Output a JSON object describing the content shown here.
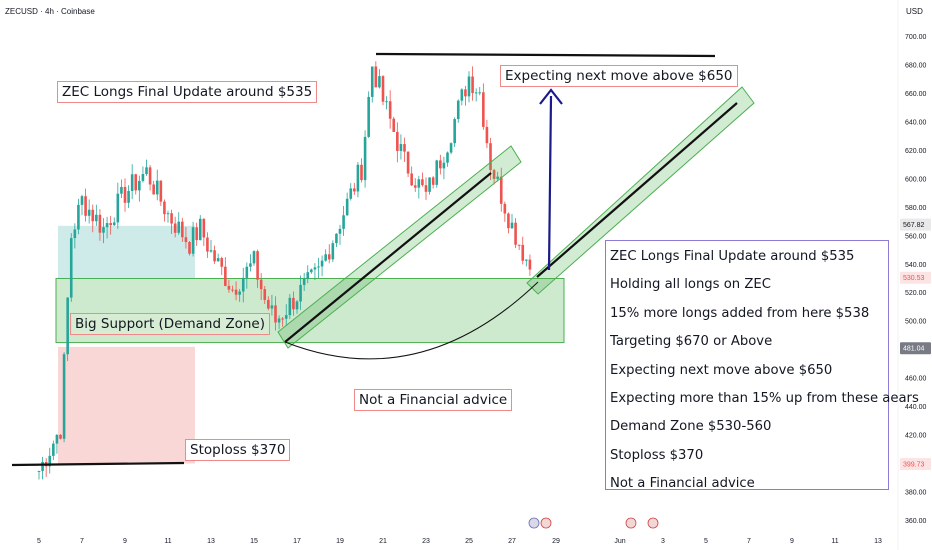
{
  "header": {
    "symbol_label": "ZECUSD · 4h · Coinbase",
    "currency": "USD"
  },
  "chart_data": {
    "type": "candlestick",
    "title": "ZECUSD · 4h · Coinbase",
    "y_axis": {
      "label": "USD",
      "range": [
        350,
        710
      ],
      "ticks": [
        "360.00",
        "380.00",
        "400.00",
        "420.00",
        "440.00",
        "460.00",
        "480.00",
        "500.00",
        "520.00",
        "540.00",
        "560.00",
        "580.00",
        "600.00",
        "620.00",
        "640.00",
        "660.00",
        "680.00",
        "700.00"
      ]
    },
    "x_axis": {
      "ticks": [
        "5",
        "7",
        "9",
        "11",
        "13",
        "15",
        "17",
        "19",
        "21",
        "23",
        "25",
        "27",
        "29",
        "Jun",
        "3",
        "5",
        "7",
        "9",
        "11",
        "13"
      ]
    },
    "close_series": [
      {
        "x": "5",
        "y": 395
      },
      {
        "x": "6",
        "y": 425
      },
      {
        "x": "6.5",
        "y": 560
      },
      {
        "x": "7",
        "y": 585
      },
      {
        "x": "8",
        "y": 565
      },
      {
        "x": "9",
        "y": 590
      },
      {
        "x": "10",
        "y": 605
      },
      {
        "x": "11",
        "y": 575
      },
      {
        "x": "12",
        "y": 555
      },
      {
        "x": "12.5",
        "y": 565
      },
      {
        "x": "13",
        "y": 548
      },
      {
        "x": "14",
        "y": 523
      },
      {
        "x": "15",
        "y": 541
      },
      {
        "x": "15.5",
        "y": 515
      },
      {
        "x": "16",
        "y": 500
      },
      {
        "x": "17",
        "y": 518
      },
      {
        "x": "18",
        "y": 534
      },
      {
        "x": "19",
        "y": 570
      },
      {
        "x": "20",
        "y": 608
      },
      {
        "x": "20.5",
        "y": 680
      },
      {
        "x": "21",
        "y": 655
      },
      {
        "x": "22",
        "y": 612
      },
      {
        "x": "23",
        "y": 588
      },
      {
        "x": "24",
        "y": 626
      },
      {
        "x": "25",
        "y": 672
      },
      {
        "x": "25.5",
        "y": 661
      },
      {
        "x": "26",
        "y": 611
      },
      {
        "x": "27",
        "y": 567
      },
      {
        "x": "28",
        "y": 532
      }
    ],
    "price_labels": [
      {
        "value": "567.82",
        "y": 567.82,
        "color": "#131722",
        "bg": "#e9e9ea"
      },
      {
        "value": "530.53",
        "y": 530.53,
        "color": "#ef5350",
        "bg": "#fde4e4"
      },
      {
        "value": "481.04",
        "y": 481.04,
        "color": "#ffffff",
        "bg": "#787b86"
      },
      {
        "value": "399.73",
        "y": 399.73,
        "color": "#ef5350",
        "bg": "#fde4e4"
      }
    ],
    "zones": [
      {
        "name": "demand-zone",
        "y_low": 485,
        "y_high": 530,
        "color": "#4caf50"
      },
      {
        "name": "profit-zone",
        "y_low": 530,
        "y_high": 567,
        "color": "#26a69a"
      },
      {
        "name": "loss-zone",
        "y_low": 400,
        "y_high": 482,
        "color": "#f28b8b"
      }
    ],
    "levels": [
      {
        "name": "stoploss-line",
        "y": 400
      },
      {
        "name": "top-line",
        "y": 687
      }
    ],
    "colors": {
      "up": "#26a69a",
      "down": "#ef5350",
      "arrow": "#1a1a8c",
      "channel": "#4caf50"
    }
  },
  "annotations": {
    "title_note": "ZEC Longs Final Update around $535",
    "next_move": "Expecting next move above $650",
    "big_support": "Big Support (Demand Zone)",
    "not_advice": "Not a Financial advice",
    "stoploss": "Stoploss $370"
  },
  "notes": [
    "ZEC Longs Final Update around $535",
    "Holding all longs on ZEC",
    "15% more longs added from here $538",
    "Targeting $670 or Above",
    "Expecting next move above $650",
    "Expecting more than 15% up from these aears",
    "Demand Zone $530-560",
    "Stoploss $370",
    "Not a Financial advice"
  ]
}
